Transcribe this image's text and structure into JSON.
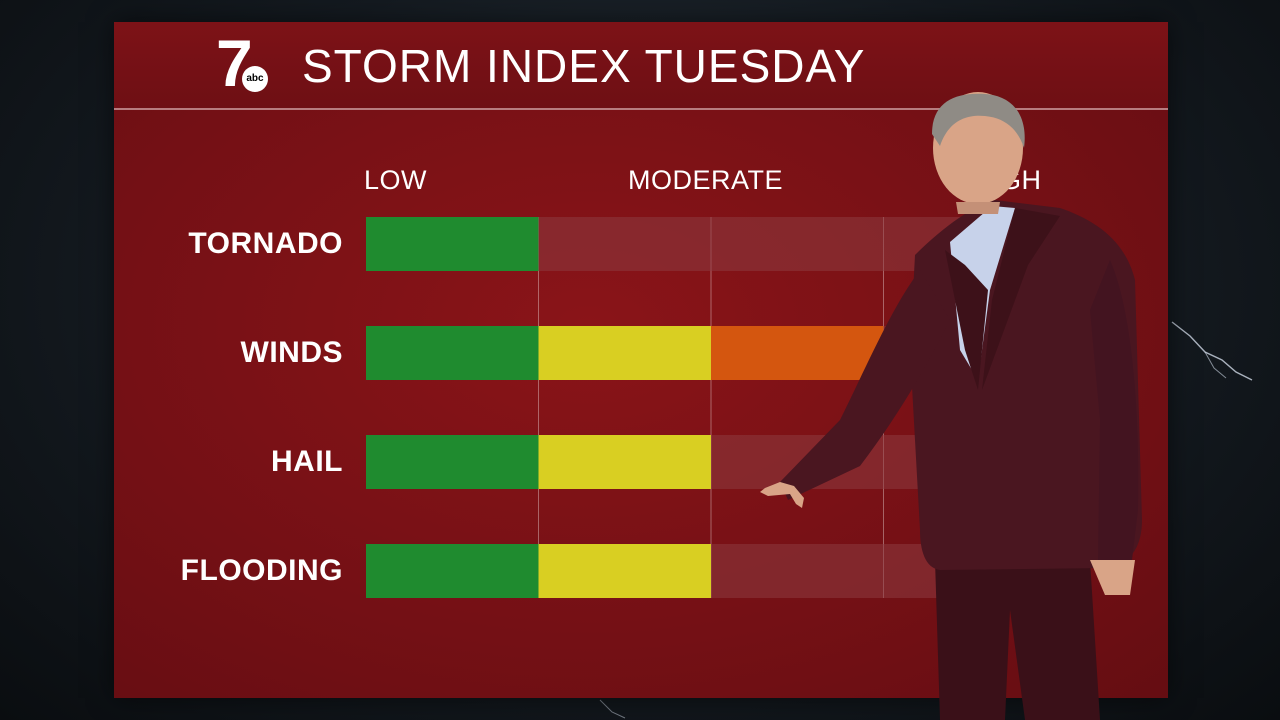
{
  "header": {
    "title": "STORM INDEX  TUESDAY"
  },
  "logo": {
    "number": "7",
    "network": "abc"
  },
  "colors": {
    "panel": "#741015",
    "low": "#1f8b2f",
    "moderate": "#d9cf22",
    "elevated": "#d4560f",
    "empty": "#8d3a3f"
  },
  "chart_data": {
    "type": "bar",
    "orientation": "horizontal",
    "title": "STORM INDEX  TUESDAY",
    "level_labels": [
      "LOW",
      "MODERATE",
      "HIGH"
    ],
    "max_level": 4,
    "categories": [
      "TORNADO",
      "WINDS",
      "HAIL",
      "FLOODING"
    ],
    "values": [
      1,
      3,
      2,
      2
    ]
  }
}
